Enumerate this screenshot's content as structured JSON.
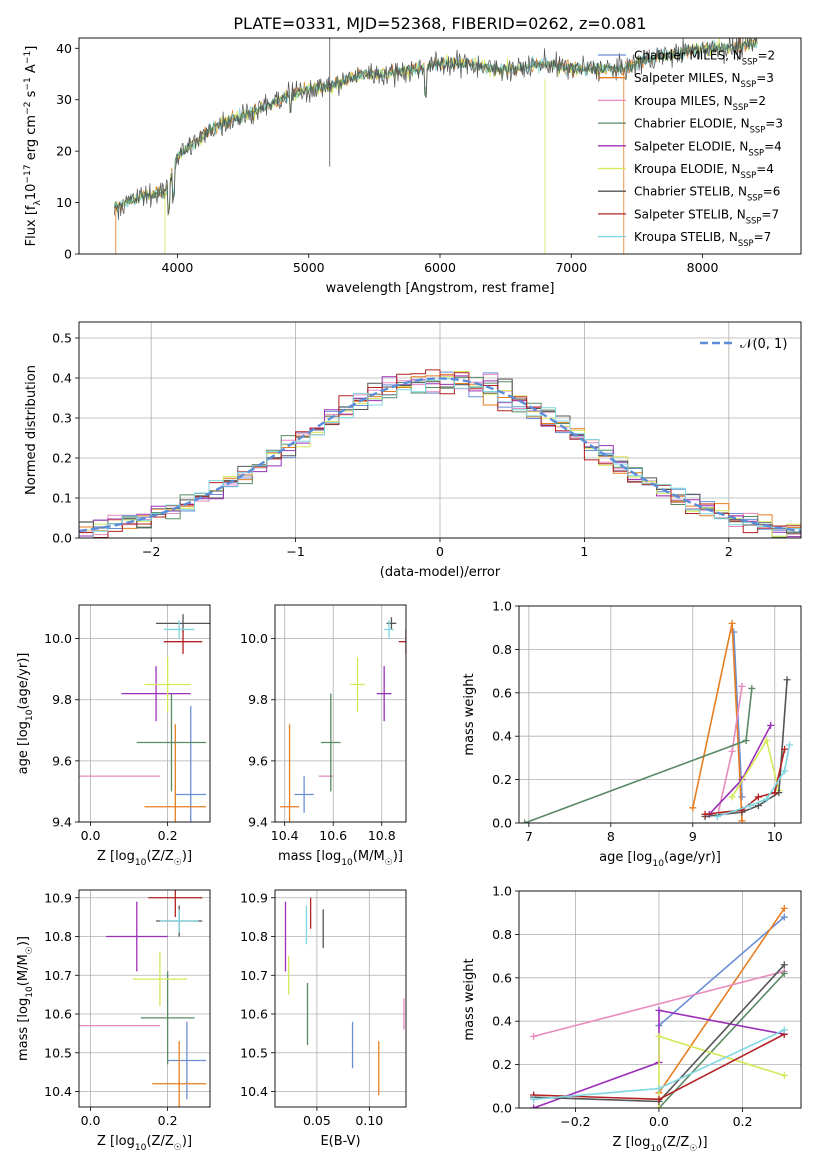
{
  "figure_title": "PLATE=0331, MJD=52368, FIBERID=0262, z=0.081",
  "colors": {
    "Chabrier MILES": "#6b8fd6",
    "Salpeter MILES": "#e67e22",
    "Kroupa MILES": "#e88bbf",
    "Chabrier ELODIE": "#5a8a64",
    "Salpeter ELODIE": "#9b30b8",
    "Kroupa ELODIE": "#d4e85a",
    "Chabrier STELIB": "#555555",
    "Salpeter STELIB": "#b22222",
    "Kroupa STELIB": "#7fd6e0",
    "gaussian": "#5b8dd9",
    "grid": "#b0b0b0"
  },
  "chart_data": [
    {
      "id": "spectrum",
      "type": "line",
      "xlabel": "wavelength [Angstrom, rest frame]",
      "ylabel": "Flux [f_λ10^-17 erg cm^-2 s^-1 A^-1]",
      "xlim": [
        3250,
        8750
      ],
      "ylim": [
        0,
        42
      ],
      "xticks": [
        4000,
        5000,
        6000,
        7000,
        8000
      ],
      "yticks": [
        0,
        10,
        20,
        30,
        40
      ],
      "grid": false,
      "legend_position": "top-right",
      "legend": [
        {
          "model": "Chabrier MILES",
          "n": "2"
        },
        {
          "model": "Salpeter MILES",
          "n": "3"
        },
        {
          "model": "Kroupa MILES",
          "n": "2"
        },
        {
          "model": "Chabrier ELODIE",
          "n": "3"
        },
        {
          "model": "Salpeter ELODIE",
          "n": "4"
        },
        {
          "model": "Kroupa ELODIE",
          "n": "4"
        },
        {
          "model": "Chabrier STELIB",
          "n": "6"
        },
        {
          "model": "Salpeter STELIB",
          "n": "7"
        },
        {
          "model": "Kroupa STELIB",
          "n": "7"
        }
      ],
      "continuum_x": [
        3520,
        3700,
        3900,
        3950,
        4000,
        4200,
        4300,
        4500,
        4700,
        4860,
        5000,
        5200,
        5400,
        5600,
        5800,
        6000,
        6200,
        6400,
        6600,
        6800,
        7000,
        7200,
        7400,
        7600,
        7800,
        8000,
        8200,
        8400
      ],
      "continuum_y": [
        9,
        11,
        12,
        15,
        19,
        23,
        25,
        27,
        29,
        31,
        32,
        33,
        35,
        35,
        36,
        37,
        37,
        36,
        36,
        37,
        36,
        36,
        36,
        38,
        39,
        40,
        40,
        41
      ]
    },
    {
      "id": "residuals",
      "type": "histogram",
      "xlabel": "(data-model)/error",
      "ylabel": "Normed distribution",
      "xlim": [
        -2.5,
        2.5
      ],
      "ylim": [
        0,
        0.54
      ],
      "xticks": [
        -2,
        -1,
        0,
        1,
        2
      ],
      "yticks": [
        0.0,
        0.1,
        0.2,
        0.3,
        0.4,
        0.5
      ],
      "grid": true,
      "legend_position": "top-right",
      "legend_label": "N(0,1)",
      "bin_width": 0.1
    },
    {
      "id": "age-vs-Z",
      "type": "errorbar",
      "xlabel": "Z [log10(Z/Z☉)]",
      "ylabel": "age [log10(age/yr)]",
      "xlim": [
        -0.03,
        0.31
      ],
      "ylim": [
        9.4,
        10.11
      ],
      "xticks": [
        0.0,
        0.2
      ],
      "yticks": [
        9.4,
        9.6,
        9.8,
        10.0
      ],
      "grid": true,
      "points": [
        {
          "model": "Chabrier MILES",
          "x": 0.26,
          "xerr": 0.04,
          "y": 9.49,
          "yerr": 0.29
        },
        {
          "model": "Salpeter MILES",
          "x": 0.22,
          "xerr": 0.08,
          "y": 9.45,
          "yerr": 0.27
        },
        {
          "model": "Kroupa MILES",
          "x": -0.01,
          "xerr": 0.19,
          "y": 9.55,
          "yerr": 0.0
        },
        {
          "model": "Chabrier ELODIE",
          "x": 0.21,
          "xerr": 0.09,
          "y": 9.66,
          "yerr": 0.16
        },
        {
          "model": "Salpeter ELODIE",
          "x": 0.17,
          "xerr": 0.09,
          "y": 9.82,
          "yerr": 0.09
        },
        {
          "model": "Kroupa ELODIE",
          "x": 0.2,
          "xerr": 0.06,
          "y": 9.85,
          "yerr": 0.09
        },
        {
          "model": "Chabrier STELIB",
          "x": 0.24,
          "xerr": 0.07,
          "y": 10.05,
          "yerr": 0.03
        },
        {
          "model": "Salpeter STELIB",
          "x": 0.24,
          "xerr": 0.05,
          "y": 9.99,
          "yerr": 0.04
        },
        {
          "model": "Kroupa STELIB",
          "x": 0.23,
          "xerr": 0.04,
          "y": 10.03,
          "yerr": 0.03
        }
      ]
    },
    {
      "id": "age-vs-mass",
      "type": "errorbar",
      "xlabel": "mass [log10(M/M☉)]",
      "ylabel": "",
      "xlim": [
        10.36,
        10.9
      ],
      "ylim": [
        9.4,
        10.11
      ],
      "xticks": [
        10.4,
        10.6,
        10.8
      ],
      "yticks": [
        9.4,
        9.6,
        9.8,
        10.0
      ],
      "grid": true,
      "points": [
        {
          "model": "Chabrier MILES",
          "x": 10.48,
          "xerr": 0.04,
          "y": 9.49,
          "yerr": 0.06
        },
        {
          "model": "Salpeter MILES",
          "x": 10.42,
          "xerr": 0.04,
          "y": 9.45,
          "yerr": 0.27
        },
        {
          "model": "Kroupa MILES",
          "x": 10.57,
          "xerr": 0.03,
          "y": 9.55,
          "yerr": 0.0
        },
        {
          "model": "Chabrier ELODIE",
          "x": 10.59,
          "xerr": 0.04,
          "y": 9.66,
          "yerr": 0.16
        },
        {
          "model": "Salpeter ELODIE",
          "x": 10.81,
          "xerr": 0.03,
          "y": 9.82,
          "yerr": 0.09
        },
        {
          "model": "Kroupa ELODIE",
          "x": 10.7,
          "xerr": 0.03,
          "y": 9.85,
          "yerr": 0.09
        },
        {
          "model": "Chabrier STELIB",
          "x": 10.84,
          "xerr": 0.02,
          "y": 10.05,
          "yerr": 0.02
        },
        {
          "model": "Salpeter STELIB",
          "x": 10.9,
          "xerr": 0.03,
          "y": 9.99,
          "yerr": 0.04
        },
        {
          "model": "Kroupa STELIB",
          "x": 10.83,
          "xerr": 0.02,
          "y": 10.03,
          "yerr": 0.03
        }
      ]
    },
    {
      "id": "weight-vs-age",
      "type": "line",
      "xlabel": "age [log10(age/yr)]",
      "ylabel": "mass weight",
      "xlim": [
        6.88,
        10.32
      ],
      "ylim": [
        0,
        1.0
      ],
      "xticks": [
        7,
        8,
        9,
        10
      ],
      "yticks": [
        0.0,
        0.2,
        0.4,
        0.6,
        0.8,
        1.0
      ],
      "grid": true,
      "series": [
        {
          "model": "Chabrier MILES",
          "points": [
            [
              9.5,
              0.88
            ],
            [
              9.6,
              0.12
            ]
          ]
        },
        {
          "model": "Salpeter MILES",
          "points": [
            [
              9.0,
              0.07
            ],
            [
              9.48,
              0.92
            ],
            [
              9.6,
              0.01
            ]
          ]
        },
        {
          "model": "Kroupa MILES",
          "points": [
            [
              9.3,
              0.03
            ],
            [
              9.48,
              0.33
            ],
            [
              9.6,
              0.63
            ]
          ]
        },
        {
          "model": "Chabrier ELODIE",
          "points": [
            [
              6.95,
              0.0
            ],
            [
              9.65,
              0.38
            ],
            [
              9.72,
              0.62
            ]
          ]
        },
        {
          "model": "Salpeter ELODIE",
          "points": [
            [
              9.2,
              0.04
            ],
            [
              9.6,
              0.2
            ],
            [
              9.95,
              0.45
            ]
          ]
        },
        {
          "model": "Kroupa ELODIE",
          "points": [
            [
              9.48,
              0.12
            ],
            [
              9.9,
              0.38
            ],
            [
              10.05,
              0.15
            ]
          ]
        },
        {
          "model": "Chabrier STELIB",
          "points": [
            [
              9.15,
              0.03
            ],
            [
              9.6,
              0.05
            ],
            [
              9.8,
              0.08
            ],
            [
              10.05,
              0.14
            ],
            [
              10.15,
              0.66
            ]
          ]
        },
        {
          "model": "Salpeter STELIB",
          "points": [
            [
              9.15,
              0.04
            ],
            [
              9.6,
              0.06
            ],
            [
              9.8,
              0.12
            ],
            [
              10.0,
              0.14
            ],
            [
              10.12,
              0.34
            ]
          ]
        },
        {
          "model": "Kroupa STELIB",
          "points": [
            [
              9.3,
              0.03
            ],
            [
              9.7,
              0.08
            ],
            [
              9.9,
              0.11
            ],
            [
              10.12,
              0.24
            ],
            [
              10.18,
              0.36
            ]
          ]
        }
      ]
    },
    {
      "id": "mass-vs-Z",
      "type": "errorbar",
      "xlabel": "Z [log10(Z/Z☉)]",
      "ylabel": "mass [log10(M/M☉)]",
      "xlim": [
        -0.03,
        0.31
      ],
      "ylim": [
        10.36,
        10.92
      ],
      "xticks": [
        0.0,
        0.2
      ],
      "yticks": [
        10.4,
        10.5,
        10.6,
        10.7,
        10.8,
        10.9
      ],
      "grid": true,
      "points": [
        {
          "model": "Chabrier MILES",
          "x": 0.25,
          "xerr": 0.05,
          "y": 10.48,
          "yerr": 0.1
        },
        {
          "model": "Salpeter MILES",
          "x": 0.23,
          "xerr": 0.07,
          "y": 10.42,
          "yerr": 0.11
        },
        {
          "model": "Kroupa MILES",
          "x": 0.0,
          "xerr": 0.18,
          "y": 10.57,
          "yerr": 0.0
        },
        {
          "model": "Chabrier ELODIE",
          "x": 0.2,
          "xerr": 0.07,
          "y": 10.59,
          "yerr": 0.12
        },
        {
          "model": "Salpeter ELODIE",
          "x": 0.12,
          "xerr": 0.08,
          "y": 10.8,
          "yerr": 0.09
        },
        {
          "model": "Kroupa ELODIE",
          "x": 0.18,
          "xerr": 0.07,
          "y": 10.69,
          "yerr": 0.07
        },
        {
          "model": "Chabrier STELIB",
          "x": 0.23,
          "xerr": 0.06,
          "y": 10.84,
          "yerr": 0.04
        },
        {
          "model": "Salpeter STELIB",
          "x": 0.22,
          "xerr": 0.07,
          "y": 10.9,
          "yerr": 0.05
        },
        {
          "model": "Kroupa STELIB",
          "x": 0.23,
          "xerr": 0.05,
          "y": 10.84,
          "yerr": 0.03
        }
      ]
    },
    {
      "id": "mass-vs-EBV",
      "type": "errorbar",
      "xlabel": "E(B-V)",
      "ylabel": "",
      "xlim": [
        0.01,
        0.135
      ],
      "ylim": [
        10.36,
        10.92
      ],
      "xticks": [
        0.05,
        0.1
      ],
      "yticks": [
        10.4,
        10.5,
        10.6,
        10.7,
        10.8,
        10.9
      ],
      "grid": true,
      "points": [
        {
          "model": "Chabrier MILES",
          "x": 0.084,
          "xerr": 0.0,
          "y": 10.52,
          "yerr": 0.06
        },
        {
          "model": "Salpeter MILES",
          "x": 0.109,
          "xerr": 0.0,
          "y": 10.46,
          "yerr": 0.07
        },
        {
          "model": "Kroupa MILES",
          "x": 0.133,
          "xerr": 0.0,
          "y": 10.6,
          "yerr": 0.04
        },
        {
          "model": "Chabrier ELODIE",
          "x": 0.041,
          "xerr": 0.0,
          "y": 10.6,
          "yerr": 0.08
        },
        {
          "model": "Salpeter ELODIE",
          "x": 0.02,
          "xerr": 0.0,
          "y": 10.8,
          "yerr": 0.09
        },
        {
          "model": "Kroupa ELODIE",
          "x": 0.023,
          "xerr": 0.0,
          "y": 10.7,
          "yerr": 0.05
        },
        {
          "model": "Chabrier STELIB",
          "x": 0.056,
          "xerr": 0.0,
          "y": 10.82,
          "yerr": 0.05
        },
        {
          "model": "Salpeter STELIB",
          "x": 0.044,
          "xerr": 0.0,
          "y": 10.86,
          "yerr": 0.04
        },
        {
          "model": "Kroupa STELIB",
          "x": 0.04,
          "xerr": 0.0,
          "y": 10.83,
          "yerr": 0.05
        }
      ]
    },
    {
      "id": "weight-vs-Z",
      "type": "line",
      "xlabel": "Z [log10(Z/Z☉)]",
      "ylabel": "mass weight",
      "xlim": [
        -0.335,
        0.34
      ],
      "ylim": [
        0,
        1.0
      ],
      "xticks": [
        -0.2,
        0.0,
        0.2
      ],
      "yticks": [
        0.0,
        0.2,
        0.4,
        0.6,
        0.8,
        1.0
      ],
      "grid": true,
      "series": [
        {
          "model": "Chabrier MILES",
          "points": [
            [
              0.0,
              0.38
            ],
            [
              0.3,
              0.88
            ]
          ]
        },
        {
          "model": "Salpeter MILES",
          "points": [
            [
              0.0,
              0.07
            ],
            [
              0.3,
              0.92
            ]
          ]
        },
        {
          "model": "Kroupa MILES",
          "points": [
            [
              -0.3,
              0.33
            ],
            [
              0.3,
              0.63
            ]
          ]
        },
        {
          "model": "Chabrier ELODIE",
          "points": [
            [
              0.0,
              0.0
            ],
            [
              0.3,
              0.62
            ]
          ]
        },
        {
          "model": "Salpeter ELODIE",
          "points": [
            [
              -0.3,
              0.0
            ],
            [
              0.0,
              0.21
            ],
            [
              0.0,
              0.45
            ],
            [
              0.3,
              0.34
            ]
          ]
        },
        {
          "model": "Kroupa ELODIE",
          "points": [
            [
              0.0,
              0.0
            ],
            [
              0.0,
              0.33
            ],
            [
              0.3,
              0.15
            ]
          ]
        },
        {
          "model": "Chabrier STELIB",
          "points": [
            [
              -0.3,
              0.05
            ],
            [
              0.0,
              0.03
            ],
            [
              0.3,
              0.66
            ]
          ]
        },
        {
          "model": "Salpeter STELIB",
          "points": [
            [
              -0.3,
              0.06
            ],
            [
              0.0,
              0.04
            ],
            [
              0.3,
              0.34
            ]
          ]
        },
        {
          "model": "Kroupa STELIB",
          "points": [
            [
              -0.3,
              0.04
            ],
            [
              0.0,
              0.09
            ],
            [
              0.3,
              0.36
            ]
          ]
        }
      ]
    }
  ]
}
